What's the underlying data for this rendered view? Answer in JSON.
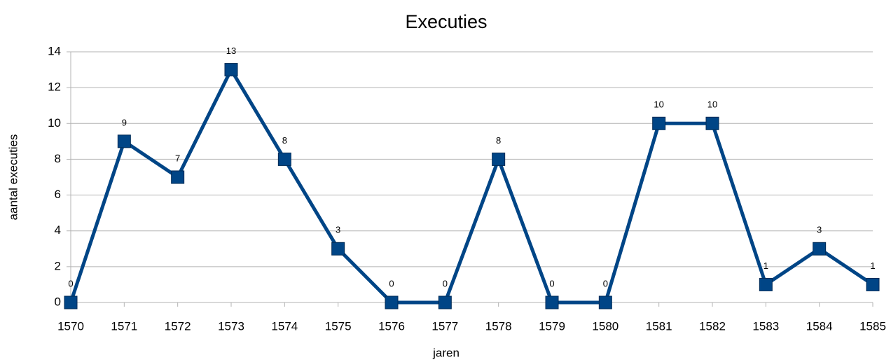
{
  "chart_data": {
    "type": "line",
    "title": "Executies",
    "xlabel": "jaren",
    "ylabel": "aantal executies",
    "x": [
      1570,
      1571,
      1572,
      1573,
      1574,
      1575,
      1576,
      1577,
      1578,
      1579,
      1580,
      1581,
      1582,
      1583,
      1584,
      1585
    ],
    "series": [
      {
        "name": "aantal executies",
        "color": "#004586",
        "values": [
          0,
          9,
          7,
          13,
          8,
          3,
          0,
          0,
          8,
          0,
          0,
          10,
          10,
          1,
          3,
          1
        ]
      }
    ],
    "xlim": [
      1570,
      1585
    ],
    "xticks": [
      1570,
      1571,
      1572,
      1573,
      1574,
      1575,
      1576,
      1577,
      1578,
      1579,
      1580,
      1581,
      1582,
      1583,
      1584,
      1585
    ],
    "ylim": [
      0,
      14
    ],
    "yticks": [
      0,
      2,
      4,
      6,
      8,
      10,
      12,
      14
    ],
    "grid": true
  }
}
